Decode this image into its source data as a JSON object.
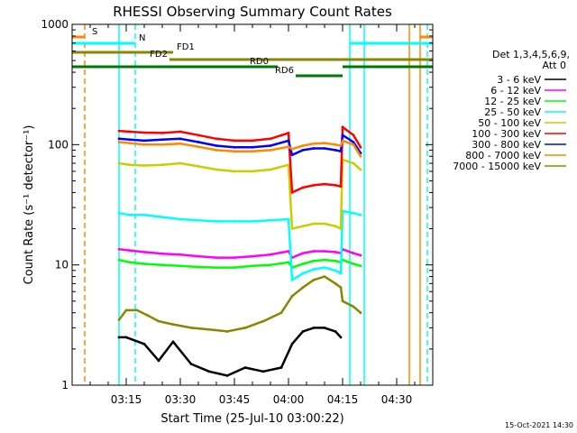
{
  "chart_data": {
    "type": "line",
    "title": "RHESSI Observing Summary Count Rates",
    "xlabel": "Start Time (25-Jul-10 03:00:22)",
    "ylabel": "Count Rate (s⁻¹ detector⁻¹)",
    "y_scale": "log",
    "ylim": [
      1,
      1000
    ],
    "xlim_minutes": [
      0,
      100
    ],
    "x_ticks": [
      {
        "minute": 15,
        "label": "03:15"
      },
      {
        "minute": 30,
        "label": "03:30"
      },
      {
        "minute": 45,
        "label": "03:45"
      },
      {
        "minute": 60,
        "label": "04:00"
      },
      {
        "minute": 75,
        "label": "04:15"
      },
      {
        "minute": 90,
        "label": "04:30"
      }
    ],
    "y_ticks": [
      {
        "value": 1,
        "label": "1"
      },
      {
        "value": 10,
        "label": "10"
      },
      {
        "value": 100,
        "label": "100"
      },
      {
        "value": 1000,
        "label": "1000"
      }
    ],
    "legend_title": "Det 1,3,4,5,6,9,",
    "legend_subtitle": "Att 0",
    "legend_position": "right",
    "grid": false,
    "series": [
      {
        "name": "3 - 6 keV",
        "color": "#000000",
        "points": [
          [
            13,
            2.5
          ],
          [
            15,
            2.5
          ],
          [
            20,
            2.2
          ],
          [
            24,
            1.6
          ],
          [
            28,
            2.3
          ],
          [
            33,
            1.5
          ],
          [
            38,
            1.3
          ],
          [
            43,
            1.2
          ],
          [
            48,
            1.4
          ],
          [
            53,
            1.3
          ],
          [
            58,
            1.4
          ],
          [
            61,
            2.2
          ],
          [
            64,
            2.8
          ],
          [
            67,
            3.0
          ],
          [
            70,
            3.0
          ],
          [
            73,
            2.8
          ],
          [
            74.5,
            2.5
          ]
        ]
      },
      {
        "name": "6 - 12 keV",
        "color": "#ff00ff",
        "points": [
          [
            13,
            13.5
          ],
          [
            16,
            13.2
          ],
          [
            20,
            12.8
          ],
          [
            25,
            12.4
          ],
          [
            30,
            12.2
          ],
          [
            35,
            11.8
          ],
          [
            40,
            11.5
          ],
          [
            45,
            11.5
          ],
          [
            50,
            11.8
          ],
          [
            55,
            12.2
          ],
          [
            60,
            13.0
          ],
          [
            61,
            11.5
          ],
          [
            64,
            12.5
          ],
          [
            67,
            13.0
          ],
          [
            70,
            13.0
          ],
          [
            73,
            12.8
          ],
          [
            74.5,
            12.5
          ],
          [
            75,
            13.5
          ],
          [
            78,
            12.5
          ],
          [
            80,
            12.0
          ]
        ]
      },
      {
        "name": "12 - 25 keV",
        "color": "#00ff00",
        "points": [
          [
            13,
            11.0
          ],
          [
            16,
            10.5
          ],
          [
            20,
            10.2
          ],
          [
            25,
            10.0
          ],
          [
            30,
            9.8
          ],
          [
            35,
            9.6
          ],
          [
            40,
            9.5
          ],
          [
            45,
            9.5
          ],
          [
            50,
            9.8
          ],
          [
            55,
            10.0
          ],
          [
            60,
            10.5
          ],
          [
            61,
            9.5
          ],
          [
            64,
            10.2
          ],
          [
            67,
            10.8
          ],
          [
            70,
            11.0
          ],
          [
            73,
            10.8
          ],
          [
            74.5,
            10.5
          ],
          [
            75,
            11.0
          ],
          [
            78,
            10.2
          ],
          [
            80,
            9.8
          ]
        ]
      },
      {
        "name": "25 - 50 keV",
        "color": "#00ffff",
        "points": [
          [
            13,
            27
          ],
          [
            16,
            26
          ],
          [
            20,
            26
          ],
          [
            25,
            25
          ],
          [
            30,
            24
          ],
          [
            35,
            23.5
          ],
          [
            40,
            23
          ],
          [
            45,
            23
          ],
          [
            50,
            23
          ],
          [
            55,
            23.5
          ],
          [
            60,
            24
          ],
          [
            61,
            7.5
          ],
          [
            64,
            8.5
          ],
          [
            67,
            9.2
          ],
          [
            70,
            9.5
          ],
          [
            73,
            9.0
          ],
          [
            74.5,
            8.5
          ],
          [
            75,
            28
          ],
          [
            78,
            27
          ],
          [
            80,
            26
          ]
        ]
      },
      {
        "name": "50 - 100 keV",
        "color": "#cccc00",
        "points": [
          [
            13,
            70
          ],
          [
            16,
            68
          ],
          [
            20,
            67
          ],
          [
            25,
            68
          ],
          [
            30,
            70
          ],
          [
            35,
            66
          ],
          [
            40,
            62
          ],
          [
            45,
            60
          ],
          [
            50,
            60
          ],
          [
            55,
            62
          ],
          [
            60,
            68
          ],
          [
            61,
            20
          ],
          [
            64,
            21
          ],
          [
            67,
            22
          ],
          [
            70,
            22
          ],
          [
            73,
            21
          ],
          [
            74.5,
            20
          ],
          [
            75,
            75
          ],
          [
            78,
            70
          ],
          [
            80,
            62
          ]
        ]
      },
      {
        "name": "100 - 300 keV",
        "color": "#ff0000",
        "points": [
          [
            13,
            130
          ],
          [
            16,
            128
          ],
          [
            20,
            126
          ],
          [
            25,
            125
          ],
          [
            30,
            128
          ],
          [
            35,
            120
          ],
          [
            40,
            112
          ],
          [
            45,
            108
          ],
          [
            50,
            108
          ],
          [
            55,
            112
          ],
          [
            60,
            125
          ],
          [
            61,
            40
          ],
          [
            64,
            44
          ],
          [
            67,
            46
          ],
          [
            70,
            47
          ],
          [
            73,
            46
          ],
          [
            74.5,
            45
          ],
          [
            75,
            140
          ],
          [
            78,
            120
          ],
          [
            80,
            95
          ]
        ]
      },
      {
        "name": "300 - 800 keV",
        "color": "#0000ff",
        "points": [
          [
            13,
            112
          ],
          [
            16,
            110
          ],
          [
            20,
            108
          ],
          [
            25,
            110
          ],
          [
            30,
            112
          ],
          [
            35,
            105
          ],
          [
            40,
            98
          ],
          [
            45,
            95
          ],
          [
            50,
            95
          ],
          [
            55,
            98
          ],
          [
            60,
            108
          ],
          [
            61,
            82
          ],
          [
            64,
            90
          ],
          [
            67,
            93
          ],
          [
            70,
            93
          ],
          [
            73,
            90
          ],
          [
            74.5,
            88
          ],
          [
            75,
            120
          ],
          [
            78,
            105
          ],
          [
            80,
            85
          ]
        ]
      },
      {
        "name": "800 - 7000 keV",
        "color": "#ff8800",
        "points": [
          [
            13,
            105
          ],
          [
            16,
            103
          ],
          [
            20,
            100
          ],
          [
            25,
            100
          ],
          [
            30,
            102
          ],
          [
            35,
            96
          ],
          [
            40,
            90
          ],
          [
            45,
            88
          ],
          [
            50,
            88
          ],
          [
            55,
            90
          ],
          [
            60,
            96
          ],
          [
            61,
            92
          ],
          [
            64,
            98
          ],
          [
            67,
            102
          ],
          [
            70,
            103
          ],
          [
            73,
            100
          ],
          [
            74.5,
            98
          ],
          [
            75,
            108
          ],
          [
            78,
            100
          ],
          [
            80,
            80
          ]
        ]
      },
      {
        "name": "7000 - 15000 keV",
        "color": "#888800",
        "points": [
          [
            13,
            3.5
          ],
          [
            15,
            4.2
          ],
          [
            18,
            4.2
          ],
          [
            21,
            3.8
          ],
          [
            24,
            3.4
          ],
          [
            28,
            3.2
          ],
          [
            33,
            3.0
          ],
          [
            38,
            2.9
          ],
          [
            43,
            2.8
          ],
          [
            48,
            3.0
          ],
          [
            53,
            3.4
          ],
          [
            58,
            4.0
          ],
          [
            61,
            5.5
          ],
          [
            64,
            6.5
          ],
          [
            67,
            7.5
          ],
          [
            70,
            8.0
          ],
          [
            73,
            7.0
          ],
          [
            74.5,
            6.5
          ],
          [
            75,
            5.0
          ],
          [
            78,
            4.5
          ],
          [
            80,
            4.0
          ]
        ]
      }
    ],
    "flag_bars": [
      {
        "label": "S",
        "color": "#ff8800",
        "level_rank": 1,
        "segments_minutes": [
          [
            0,
            3.5
          ],
          [
            96.5,
            100
          ]
        ]
      },
      {
        "label": "N",
        "color": "#00ffff",
        "level_rank": 2,
        "segments_minutes": [
          [
            0,
            17.5
          ],
          [
            77,
            100
          ]
        ]
      },
      {
        "label": "FD1",
        "color": "#888800",
        "level_rank": 3,
        "segments_minutes": [
          [
            0,
            28
          ]
        ]
      },
      {
        "label": "FD2",
        "color": "#888800",
        "level_rank": 4,
        "segments_minutes": [
          [
            27,
            100
          ]
        ]
      },
      {
        "label": "RD0",
        "color": "#007700",
        "level_rank": 5,
        "segments_minutes": [
          [
            0,
            57
          ],
          [
            75,
            100
          ]
        ]
      },
      {
        "label": "RD6",
        "color": "#007700",
        "level_rank": 6,
        "segments_minutes": [
          [
            62,
            75
          ]
        ]
      }
    ],
    "vertical_markers": [
      {
        "minute": 3.5,
        "color": "#ff8800",
        "style": "dashed"
      },
      {
        "minute": 17.5,
        "color": "#00ffff",
        "style": "dashed"
      },
      {
        "minute": 13,
        "color": "#00ffff",
        "style": "solid"
      },
      {
        "minute": 77,
        "color": "#00ffff",
        "style": "solid"
      },
      {
        "minute": 81,
        "color": "#00ffff",
        "style": "solid"
      },
      {
        "minute": 93.5,
        "color": "#ff8800",
        "style": "solid"
      },
      {
        "minute": 96.5,
        "color": "#ff8800",
        "style": "solid"
      },
      {
        "minute": 98.5,
        "color": "#00ffff",
        "style": "dashed"
      }
    ]
  },
  "footer": {
    "date_stamp": "15-Oct-2021 14:30"
  }
}
